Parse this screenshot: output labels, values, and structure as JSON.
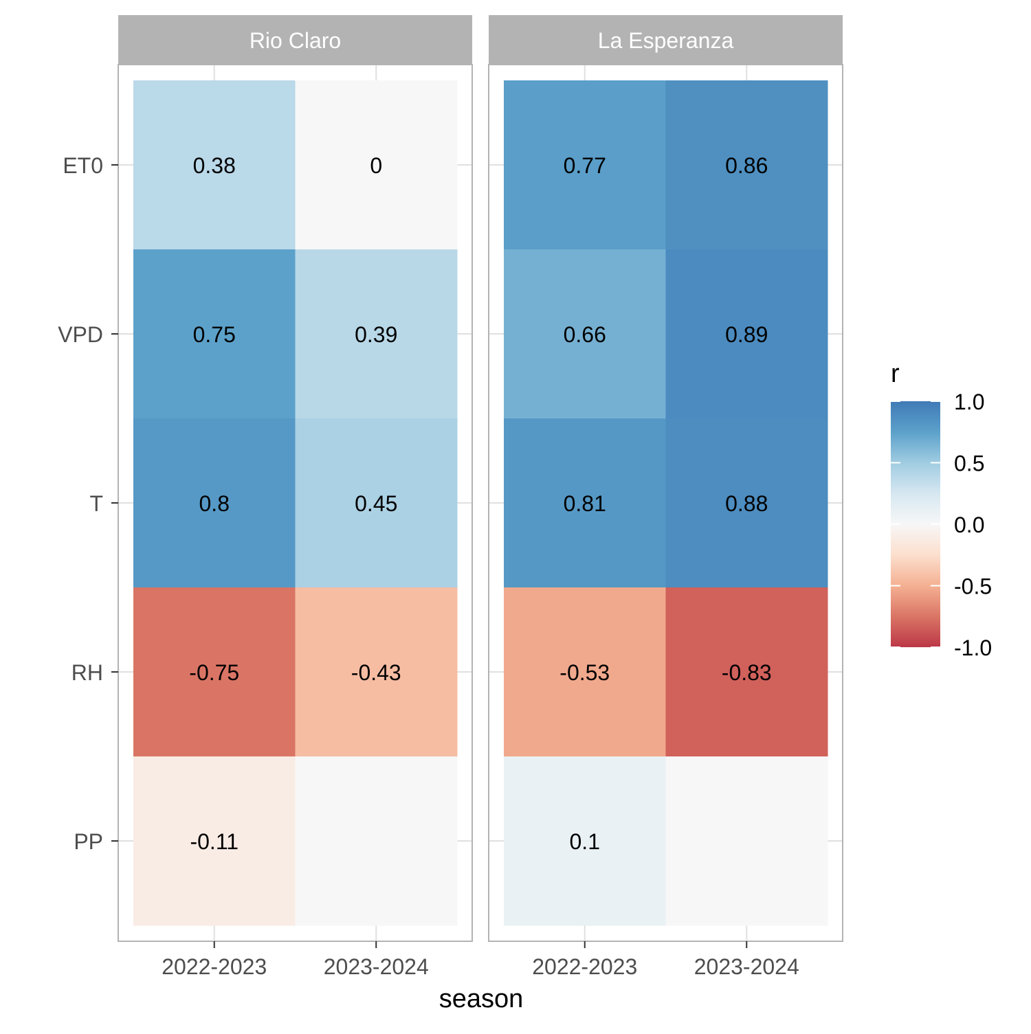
{
  "chart_data": {
    "type": "heatmap",
    "facets": [
      "Rio Claro",
      "La Esperanza"
    ],
    "x": [
      "2022-2023",
      "2023-2024"
    ],
    "y": [
      "ET0",
      "VPD",
      "T",
      "RH",
      "PP"
    ],
    "xlabel": "season",
    "ylabel": "",
    "cells": [
      {
        "facet": "Rio Claro",
        "season": "2022-2023",
        "variable": "ET0",
        "r": 0.38,
        "label": "0.38"
      },
      {
        "facet": "Rio Claro",
        "season": "2023-2024",
        "variable": "ET0",
        "r": 0.0,
        "label": "0"
      },
      {
        "facet": "Rio Claro",
        "season": "2022-2023",
        "variable": "VPD",
        "r": 0.75,
        "label": "0.75"
      },
      {
        "facet": "Rio Claro",
        "season": "2023-2024",
        "variable": "VPD",
        "r": 0.39,
        "label": "0.39"
      },
      {
        "facet": "Rio Claro",
        "season": "2022-2023",
        "variable": "T",
        "r": 0.8,
        "label": "0.8"
      },
      {
        "facet": "Rio Claro",
        "season": "2023-2024",
        "variable": "T",
        "r": 0.45,
        "label": "0.45"
      },
      {
        "facet": "Rio Claro",
        "season": "2022-2023",
        "variable": "RH",
        "r": -0.75,
        "label": "-0.75"
      },
      {
        "facet": "Rio Claro",
        "season": "2023-2024",
        "variable": "RH",
        "r": -0.43,
        "label": "-0.43"
      },
      {
        "facet": "Rio Claro",
        "season": "2022-2023",
        "variable": "PP",
        "r": -0.11,
        "label": "-0.11"
      },
      {
        "facet": "Rio Claro",
        "season": "2023-2024",
        "variable": "PP",
        "r": null,
        "label": ""
      },
      {
        "facet": "La Esperanza",
        "season": "2022-2023",
        "variable": "ET0",
        "r": 0.77,
        "label": "0.77"
      },
      {
        "facet": "La Esperanza",
        "season": "2023-2024",
        "variable": "ET0",
        "r": 0.86,
        "label": "0.86"
      },
      {
        "facet": "La Esperanza",
        "season": "2022-2023",
        "variable": "VPD",
        "r": 0.66,
        "label": "0.66"
      },
      {
        "facet": "La Esperanza",
        "season": "2023-2024",
        "variable": "VPD",
        "r": 0.89,
        "label": "0.89"
      },
      {
        "facet": "La Esperanza",
        "season": "2022-2023",
        "variable": "T",
        "r": 0.81,
        "label": "0.81"
      },
      {
        "facet": "La Esperanza",
        "season": "2023-2024",
        "variable": "T",
        "r": 0.88,
        "label": "0.88"
      },
      {
        "facet": "La Esperanza",
        "season": "2022-2023",
        "variable": "RH",
        "r": -0.53,
        "label": "-0.53"
      },
      {
        "facet": "La Esperanza",
        "season": "2023-2024",
        "variable": "RH",
        "r": -0.83,
        "label": "-0.83"
      },
      {
        "facet": "La Esperanza",
        "season": "2022-2023",
        "variable": "PP",
        "r": 0.1,
        "label": "0.1"
      },
      {
        "facet": "La Esperanza",
        "season": "2023-2024",
        "variable": "PP",
        "r": null,
        "label": ""
      }
    ],
    "legend": {
      "title": "r",
      "position": "right",
      "range": [
        -1.0,
        1.0
      ],
      "ticks": [
        1.0,
        0.5,
        0.0,
        -0.5,
        -1.0
      ],
      "tick_labels": [
        "1.0",
        "0.5",
        "0.0",
        "-0.5",
        "-1.0"
      ],
      "palette": [
        "#B2182B",
        "#D6604D",
        "#F4A582",
        "#FDDBC7",
        "#F7F7F7",
        "#D1E5F0",
        "#92C5DE",
        "#4393C3",
        "#2166AC"
      ],
      "palette_muted": true
    },
    "missing_color": "#F7F7F7",
    "grid": true,
    "strip_color": "#B3B3B3",
    "strip_text_color": "#FFFFFF"
  }
}
